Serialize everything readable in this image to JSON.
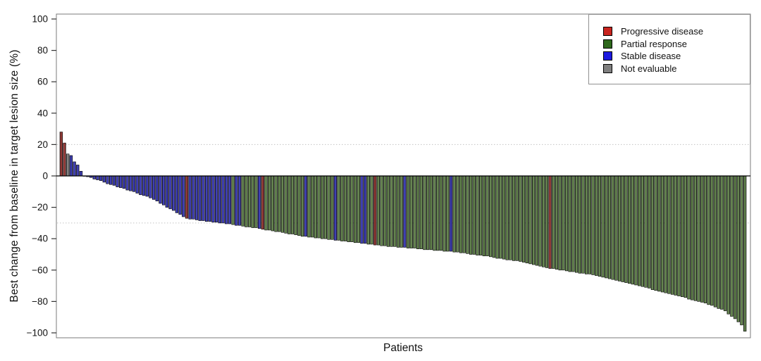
{
  "figure": {
    "ylabel": "Best change from baseline in target lesion size (%)",
    "xlabel": "Patients"
  },
  "legend": {
    "items": [
      {
        "label": "Progressive disease",
        "code": "PD",
        "color": "#c9241f"
      },
      {
        "label": "Partial response",
        "code": "PR",
        "color": "#2e681c"
      },
      {
        "label": "Stable disease",
        "code": "SD",
        "color": "#1d1ae0"
      },
      {
        "label": "Not evaluable",
        "code": "NE",
        "color": "#7f7f7f"
      }
    ]
  },
  "chart_data": {
    "type": "bar",
    "subtype": "waterfall",
    "title": "",
    "xlabel": "Patients",
    "ylabel": "Best change from baseline in target lesion size (%)",
    "ylim": [
      -103,
      103
    ],
    "yticks": [
      100,
      80,
      60,
      40,
      20,
      0,
      -20,
      -40,
      -60,
      -80,
      -100
    ],
    "reference_lines": [
      20,
      -30
    ],
    "grid": "dotted reference lines at +20 and -30 only",
    "legend_position": "top-right inside plot",
    "series_key": {
      "PD": "Progressive disease",
      "PR": "Partial response",
      "SD": "Stable disease",
      "NE": "Not evaluable"
    },
    "bar_colors": {
      "PD": "#8e2b27",
      "PR": "#3c6030",
      "SD": "#2b2b9e",
      "NE": "#808080"
    },
    "bars": [
      [
        28,
        "PD"
      ],
      [
        21,
        "PD"
      ],
      [
        14,
        "NE"
      ],
      [
        13,
        "SD"
      ],
      [
        9,
        "SD"
      ],
      [
        7,
        "SD"
      ],
      [
        3,
        "SD"
      ],
      [
        0,
        "SD"
      ],
      [
        -0.5,
        "SD"
      ],
      [
        -1,
        "SD"
      ],
      [
        -2,
        "SD"
      ],
      [
        -2.5,
        "SD"
      ],
      [
        -3,
        "SD"
      ],
      [
        -4,
        "SD"
      ],
      [
        -5,
        "SD"
      ],
      [
        -5.5,
        "SD"
      ],
      [
        -6,
        "SD"
      ],
      [
        -7,
        "SD"
      ],
      [
        -7.5,
        "SD"
      ],
      [
        -8,
        "SD"
      ],
      [
        -9,
        "SD"
      ],
      [
        -9.5,
        "SD"
      ],
      [
        -10,
        "SD"
      ],
      [
        -11,
        "SD"
      ],
      [
        -12,
        "SD"
      ],
      [
        -12.5,
        "SD"
      ],
      [
        -13,
        "SD"
      ],
      [
        -14,
        "SD"
      ],
      [
        -15,
        "SD"
      ],
      [
        -16,
        "SD"
      ],
      [
        -17.5,
        "SD"
      ],
      [
        -18.5,
        "SD"
      ],
      [
        -20,
        "SD"
      ],
      [
        -21,
        "SD"
      ],
      [
        -22,
        "SD"
      ],
      [
        -23.5,
        "SD"
      ],
      [
        -24.5,
        "SD"
      ],
      [
        -26,
        "SD"
      ],
      [
        -27,
        "PD"
      ],
      [
        -27.5,
        "SD"
      ],
      [
        -27.5,
        "SD"
      ],
      [
        -28,
        "SD"
      ],
      [
        -28.5,
        "SD"
      ],
      [
        -28.5,
        "SD"
      ],
      [
        -29,
        "SD"
      ],
      [
        -29,
        "SD"
      ],
      [
        -29.5,
        "SD"
      ],
      [
        -29.5,
        "SD"
      ],
      [
        -30,
        "SD"
      ],
      [
        -30,
        "SD"
      ],
      [
        -30.5,
        "SD"
      ],
      [
        -30.5,
        "SD"
      ],
      [
        -31,
        "PR"
      ],
      [
        -31.5,
        "SD"
      ],
      [
        -31.5,
        "SD"
      ],
      [
        -32,
        "PR"
      ],
      [
        -32.5,
        "PR"
      ],
      [
        -32.5,
        "PR"
      ],
      [
        -33,
        "PR"
      ],
      [
        -33,
        "PR"
      ],
      [
        -33.5,
        "SD"
      ],
      [
        -34,
        "PD"
      ],
      [
        -34.5,
        "PR"
      ],
      [
        -34.5,
        "PR"
      ],
      [
        -35,
        "PR"
      ],
      [
        -35.5,
        "PR"
      ],
      [
        -35.5,
        "PR"
      ],
      [
        -36,
        "PR"
      ],
      [
        -36.5,
        "PR"
      ],
      [
        -37,
        "PR"
      ],
      [
        -37,
        "PR"
      ],
      [
        -37.5,
        "PR"
      ],
      [
        -38,
        "PR"
      ],
      [
        -38.5,
        "PR"
      ],
      [
        -38.5,
        "SD"
      ],
      [
        -39,
        "PR"
      ],
      [
        -39,
        "PR"
      ],
      [
        -39.5,
        "PR"
      ],
      [
        -39.5,
        "PR"
      ],
      [
        -40,
        "PR"
      ],
      [
        -40,
        "PR"
      ],
      [
        -40.5,
        "PR"
      ],
      [
        -40.5,
        "PR"
      ],
      [
        -41,
        "SD"
      ],
      [
        -41,
        "PR"
      ],
      [
        -41.5,
        "PR"
      ],
      [
        -41.5,
        "PR"
      ],
      [
        -42,
        "PR"
      ],
      [
        -42,
        "PR"
      ],
      [
        -42.5,
        "PR"
      ],
      [
        -42.5,
        "PR"
      ],
      [
        -43,
        "SD"
      ],
      [
        -43,
        "SD"
      ],
      [
        -43.5,
        "PR"
      ],
      [
        -43.5,
        "PR"
      ],
      [
        -44,
        "PD"
      ],
      [
        -44,
        "PR"
      ],
      [
        -44.5,
        "PR"
      ],
      [
        -44.5,
        "PR"
      ],
      [
        -45,
        "PR"
      ],
      [
        -45,
        "PR"
      ],
      [
        -45,
        "PR"
      ],
      [
        -45.5,
        "PR"
      ],
      [
        -45.5,
        "PR"
      ],
      [
        -45.5,
        "SD"
      ],
      [
        -46,
        "PR"
      ],
      [
        -46,
        "PR"
      ],
      [
        -46,
        "PR"
      ],
      [
        -46.5,
        "PR"
      ],
      [
        -46.5,
        "PR"
      ],
      [
        -47,
        "PR"
      ],
      [
        -47,
        "PR"
      ],
      [
        -47,
        "PR"
      ],
      [
        -47.5,
        "PR"
      ],
      [
        -47.5,
        "PR"
      ],
      [
        -47.5,
        "PR"
      ],
      [
        -48,
        "PR"
      ],
      [
        -48,
        "PR"
      ],
      [
        -48,
        "SD"
      ],
      [
        -48.5,
        "PR"
      ],
      [
        -48.5,
        "PR"
      ],
      [
        -49,
        "PR"
      ],
      [
        -49,
        "PR"
      ],
      [
        -49.5,
        "PR"
      ],
      [
        -50,
        "PR"
      ],
      [
        -50,
        "PR"
      ],
      [
        -50.5,
        "PR"
      ],
      [
        -50.5,
        "PR"
      ],
      [
        -51,
        "PR"
      ],
      [
        -51,
        "PR"
      ],
      [
        -51.5,
        "PR"
      ],
      [
        -52,
        "PR"
      ],
      [
        -52.5,
        "PR"
      ],
      [
        -52.5,
        "PR"
      ],
      [
        -53,
        "PR"
      ],
      [
        -53.5,
        "PR"
      ],
      [
        -53.5,
        "PR"
      ],
      [
        -54,
        "PR"
      ],
      [
        -54,
        "PR"
      ],
      [
        -54.5,
        "PR"
      ],
      [
        -55,
        "PR"
      ],
      [
        -55.5,
        "PR"
      ],
      [
        -56,
        "PR"
      ],
      [
        -56.5,
        "PR"
      ],
      [
        -57,
        "PR"
      ],
      [
        -57.5,
        "PR"
      ],
      [
        -58,
        "PR"
      ],
      [
        -58.5,
        "PR"
      ],
      [
        -59,
        "PD"
      ],
      [
        -59,
        "PR"
      ],
      [
        -59.5,
        "PR"
      ],
      [
        -60,
        "PR"
      ],
      [
        -60,
        "PR"
      ],
      [
        -60.5,
        "PR"
      ],
      [
        -61,
        "PR"
      ],
      [
        -61,
        "PR"
      ],
      [
        -61.5,
        "PR"
      ],
      [
        -62,
        "PR"
      ],
      [
        -62,
        "PR"
      ],
      [
        -62.5,
        "PR"
      ],
      [
        -62.5,
        "PR"
      ],
      [
        -63,
        "PR"
      ],
      [
        -63.5,
        "PR"
      ],
      [
        -64,
        "PR"
      ],
      [
        -64.5,
        "PR"
      ],
      [
        -65,
        "PR"
      ],
      [
        -65.5,
        "PR"
      ],
      [
        -66,
        "PR"
      ],
      [
        -66.5,
        "PR"
      ],
      [
        -67,
        "PR"
      ],
      [
        -67.5,
        "PR"
      ],
      [
        -68,
        "PR"
      ],
      [
        -68.5,
        "PR"
      ],
      [
        -69,
        "PR"
      ],
      [
        -69.5,
        "PR"
      ],
      [
        -70,
        "PR"
      ],
      [
        -70.5,
        "PR"
      ],
      [
        -71,
        "PR"
      ],
      [
        -71.5,
        "PR"
      ],
      [
        -72.5,
        "PR"
      ],
      [
        -73,
        "PR"
      ],
      [
        -73.5,
        "PR"
      ],
      [
        -74,
        "PR"
      ],
      [
        -74.5,
        "PR"
      ],
      [
        -75,
        "PR"
      ],
      [
        -75.5,
        "PR"
      ],
      [
        -76,
        "PR"
      ],
      [
        -76.5,
        "PR"
      ],
      [
        -77,
        "PR"
      ],
      [
        -77.5,
        "PR"
      ],
      [
        -78.5,
        "PR"
      ],
      [
        -79,
        "PR"
      ],
      [
        -79.5,
        "PR"
      ],
      [
        -80,
        "PR"
      ],
      [
        -80.5,
        "PR"
      ],
      [
        -81,
        "PR"
      ],
      [
        -82,
        "PR"
      ],
      [
        -82.5,
        "PR"
      ],
      [
        -83.5,
        "PR"
      ],
      [
        -84.5,
        "PR"
      ],
      [
        -85,
        "PR"
      ],
      [
        -86,
        "PR"
      ],
      [
        -88,
        "PR"
      ],
      [
        -89.5,
        "PR"
      ],
      [
        -91,
        "PR"
      ],
      [
        -93,
        "PR"
      ],
      [
        -95,
        "PR"
      ],
      [
        -99,
        "PR"
      ]
    ]
  }
}
